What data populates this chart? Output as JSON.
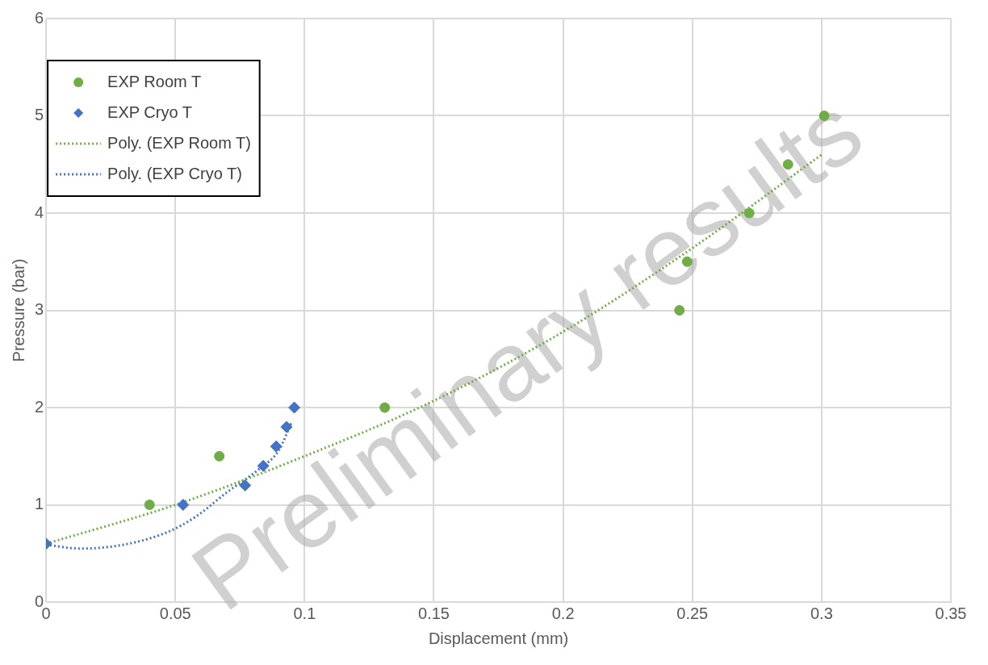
{
  "chart_data": {
    "type": "scatter",
    "xlabel": "Displacement (mm)",
    "ylabel": "Pressure (bar)",
    "xlim": [
      0,
      0.35
    ],
    "xticks": [
      0,
      0.05,
      0.1,
      0.15,
      0.2,
      0.25,
      0.3,
      0.35
    ],
    "ylim": [
      0,
      6
    ],
    "yticks": [
      0,
      1,
      2,
      3,
      4,
      5,
      6
    ],
    "grid": true,
    "legend": "top left",
    "annotations": [
      "Preliminary results"
    ],
    "series": [
      {
        "name": "EXP Room T",
        "marker": "circle",
        "color": "#70ad47",
        "x": [
          0.04,
          0.067,
          0.131,
          0.245,
          0.248,
          0.272,
          0.287,
          0.301
        ],
        "values": [
          1.0,
          1.5,
          2.0,
          3.0,
          3.5,
          4.0,
          4.5,
          5.0
        ]
      },
      {
        "name": "EXP Cryo T",
        "marker": "diamond",
        "color": "#4472c4",
        "x": [
          0,
          0.053,
          0.077,
          0.084,
          0.089,
          0.093,
          0.096
        ],
        "values": [
          0.6,
          1.0,
          1.2,
          1.4,
          1.6,
          1.8,
          2.0
        ]
      },
      {
        "name": "Poly. (EXP Room T)",
        "type": "line",
        "marker": "none",
        "line_style": "dotted",
        "color": "#70ad47",
        "x": [
          0,
          0.05,
          0.1,
          0.15,
          0.2,
          0.25,
          0.3
        ],
        "values": [
          0.6,
          1.0,
          1.5,
          2.07,
          2.78,
          3.64,
          4.6
        ]
      },
      {
        "name": "Poly. (EXP Cryo T)",
        "type": "line",
        "marker": "none",
        "line_style": "dotted",
        "color": "#4472c4",
        "x": [
          0,
          0.013,
          0.03,
          0.047,
          0.058,
          0.07,
          0.082,
          0.09,
          0.095
        ],
        "values": [
          0.59,
          0.55,
          0.59,
          0.72,
          0.88,
          1.13,
          1.36,
          1.56,
          1.85
        ]
      }
    ]
  }
}
